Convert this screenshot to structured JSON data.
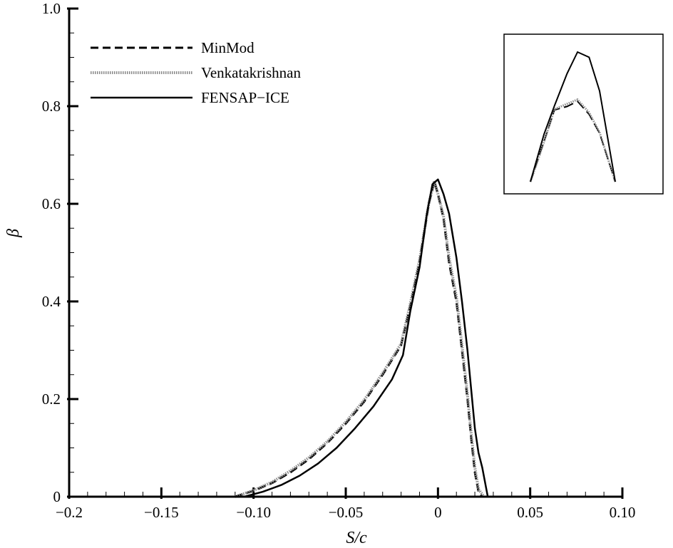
{
  "chart_data": {
    "type": "line",
    "xlabel": "S/c",
    "ylabel": "β",
    "xlim": [
      -0.2,
      0.1
    ],
    "ylim": [
      0,
      1.0
    ],
    "x_ticks": [
      -0.2,
      -0.15,
      -0.1,
      -0.05,
      0,
      0.05,
      0.1
    ],
    "x_tick_labels": [
      "−0.2",
      "−0.15",
      "−0.10",
      "−0.05",
      "0",
      "0.05",
      "0.10"
    ],
    "y_ticks": [
      0,
      0.2,
      0.4,
      0.6,
      0.8,
      1.0
    ],
    "y_tick_labels": [
      "0",
      "0.2",
      "0.4",
      "0.6",
      "0.8",
      "1.0"
    ],
    "grid": false,
    "legend_position": "top-left",
    "inset": "zoom of peak region",
    "series": [
      {
        "name": "MinMod",
        "style": "dashed",
        "x": [
          -0.11,
          -0.1,
          -0.09,
          -0.08,
          -0.07,
          -0.06,
          -0.05,
          -0.04,
          -0.03,
          -0.02,
          -0.015,
          -0.01,
          -0.005,
          -0.002,
          0.0,
          0.003,
          0.006,
          0.01,
          0.013,
          0.016,
          0.018,
          0.02,
          0.022,
          0.024
        ],
        "y": [
          0.0,
          0.012,
          0.028,
          0.05,
          0.077,
          0.11,
          0.15,
          0.195,
          0.25,
          0.31,
          0.39,
          0.48,
          0.6,
          0.645,
          0.62,
          0.57,
          0.48,
          0.4,
          0.3,
          0.2,
          0.12,
          0.05,
          0.01,
          0.0
        ]
      },
      {
        "name": "Venkatakrishnan",
        "style": "dotted",
        "x": [
          -0.11,
          -0.1,
          -0.09,
          -0.08,
          -0.07,
          -0.06,
          -0.05,
          -0.04,
          -0.03,
          -0.02,
          -0.015,
          -0.01,
          -0.005,
          -0.002,
          0.0,
          0.003,
          0.006,
          0.01,
          0.013,
          0.016,
          0.018,
          0.02,
          0.022,
          0.025
        ],
        "y": [
          0.0,
          0.013,
          0.03,
          0.053,
          0.08,
          0.113,
          0.153,
          0.198,
          0.253,
          0.313,
          0.395,
          0.485,
          0.6,
          0.647,
          0.62,
          0.575,
          0.49,
          0.41,
          0.31,
          0.21,
          0.13,
          0.06,
          0.015,
          0.0
        ]
      },
      {
        "name": "FENSAP−ICE",
        "style": "solid",
        "x": [
          -0.105,
          -0.095,
          -0.085,
          -0.075,
          -0.065,
          -0.055,
          -0.045,
          -0.035,
          -0.025,
          -0.019,
          -0.015,
          -0.01,
          -0.006,
          -0.003,
          0.0,
          0.003,
          0.006,
          0.01,
          0.013,
          0.016,
          0.018,
          0.02,
          0.022,
          0.024,
          0.026,
          0.027
        ],
        "y": [
          0.0,
          0.01,
          0.024,
          0.043,
          0.068,
          0.1,
          0.14,
          0.185,
          0.24,
          0.29,
          0.38,
          0.47,
          0.58,
          0.64,
          0.65,
          0.62,
          0.58,
          0.49,
          0.4,
          0.3,
          0.22,
          0.14,
          0.09,
          0.06,
          0.02,
          0.0
        ]
      }
    ],
    "inset_series": [
      {
        "name": "MinMod",
        "style": "dashed",
        "x": [
          0,
          1.3,
          2.3,
          3.5,
          4.5,
          5.6,
          6.6,
          8.1
        ],
        "y": [
          0,
          0.47,
          0.83,
          0.87,
          0.93,
          0.78,
          0.56,
          0.0
        ]
      },
      {
        "name": "Venkatakrishnan",
        "style": "dotted",
        "x": [
          0,
          1.3,
          2.3,
          3.5,
          4.5,
          5.6,
          6.6,
          8.1
        ],
        "y": [
          0,
          0.46,
          0.84,
          0.9,
          0.95,
          0.8,
          0.57,
          0.0
        ]
      },
      {
        "name": "FENSAP−ICE",
        "style": "solid",
        "x": [
          0,
          1.3,
          2.3,
          3.5,
          4.5,
          5.6,
          6.6,
          8.1
        ],
        "y": [
          0,
          0.55,
          0.88,
          1.25,
          1.5,
          1.44,
          1.05,
          0.0
        ]
      }
    ]
  }
}
